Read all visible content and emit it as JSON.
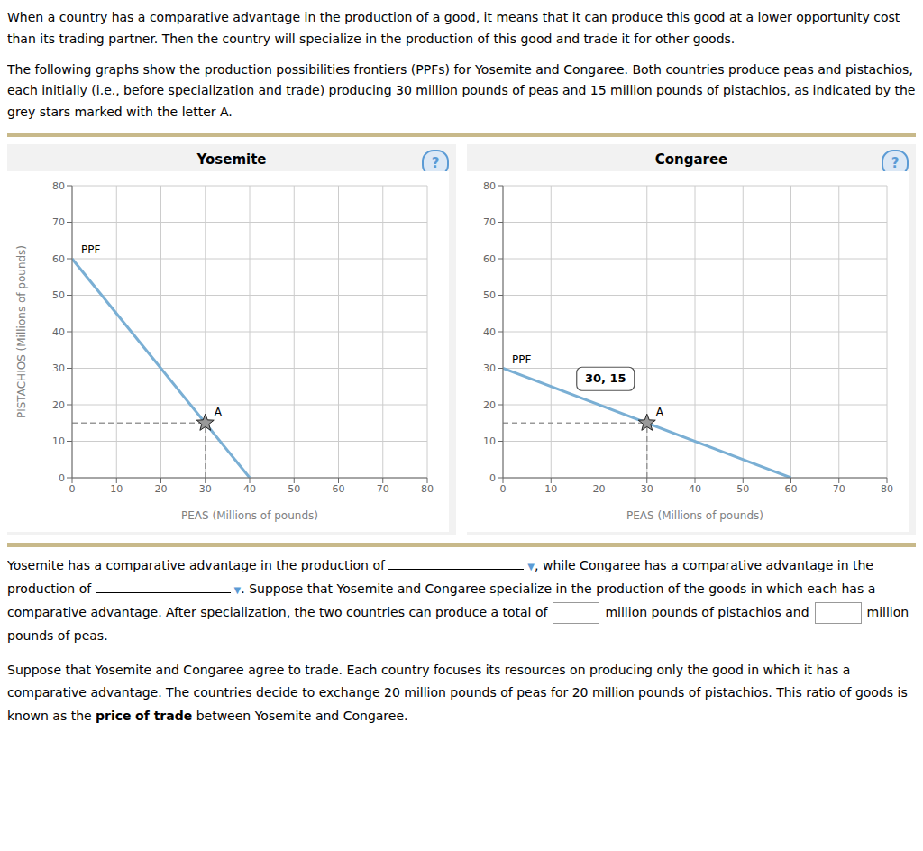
{
  "chart_data": [
    {
      "type": "line",
      "title": "Yosemite",
      "xlabel": "PEAS (Millions of pounds)",
      "ylabel": "PISTACHIOS (Millions of pounds)",
      "xlim": [
        0,
        80
      ],
      "ylim": [
        0,
        80
      ],
      "xticks": [
        0,
        10,
        20,
        30,
        40,
        50,
        60,
        70,
        80
      ],
      "yticks": [
        0,
        10,
        20,
        30,
        40,
        50,
        60,
        70,
        80
      ],
      "grid": true,
      "series": [
        {
          "name": "PPF",
          "type": "line",
          "color": "#7aafd4",
          "x": [
            0,
            40
          ],
          "values": [
            60,
            0
          ]
        },
        {
          "name": "A",
          "type": "scatter",
          "marker": "star",
          "line_style": "dashed",
          "color": "#999999",
          "x": [
            30
          ],
          "values": [
            15
          ]
        }
      ],
      "annotations": [
        {
          "text": "?"
        }
      ]
    },
    {
      "type": "line",
      "title": "Congaree",
      "xlabel": "PEAS (Millions of pounds)",
      "xlim": [
        0,
        80
      ],
      "ylim": [
        0,
        80
      ],
      "xticks": [
        0,
        10,
        20,
        30,
        40,
        50,
        60,
        70,
        80
      ],
      "yticks": [
        0,
        10,
        20,
        30,
        40,
        50,
        60,
        70,
        80
      ],
      "grid": true,
      "series": [
        {
          "name": "PPF",
          "type": "line",
          "color": "#7aafd4",
          "x": [
            0,
            60
          ],
          "values": [
            30,
            0
          ]
        },
        {
          "name": "A",
          "type": "scatter",
          "marker": "star",
          "line_style": "dashed",
          "color": "#999999",
          "x": [
            30
          ],
          "values": [
            15
          ]
        }
      ],
      "annotations": [
        {
          "text": "30, 15",
          "x": 30,
          "y": 15
        },
        {
          "text": "?"
        }
      ]
    }
  ],
  "intro": [
    "When a country has a comparative advantage in the production of a good, it means that it can produce this good at a lower opportunity cost than its\ntrading partner. Then the country will specialize in the production of this good and trade it for other goods.",
    "The following graphs show the production possibilities frontiers (PPFs) for Yosemite and Congaree. Both countries produce peas and pistachios, each\ninitially (i.e., before specialization and trade) producing 30 million pounds of peas and 15 million pounds of pistachios, as indicated by the grey stars\nmarked with the letter A."
  ],
  "question": [
    [
      [
        "Yosemite has a comparative advantage in the production of ",
        {
          "blank": "▼"
        },
        ", while Congaree has a comparative advantage in the"
      ],
      [
        "production of ",
        {
          "blank": "▼"
        },
        ". Suppose that Yosemite and Congaree specialize in the production of the goods in which each has a"
      ],
      [
        "comparative advantage. After specialization, the two countries can produce a total of",
        {
          "box": true
        },
        "million pounds of pistachios and",
        {
          "box": true
        },
        "million pounds"
      ],
      [
        "of peas."
      ]
    ],
    [
      [
        "Suppose that Yosemite and Congaree agree to trade. Each country focuses its resources on producing only the good in which it has a comparative"
      ],
      [
        "advantage. The countries decide to exchange 20 million pounds of peas for 20 million pounds of pistachios. This ratio of goods is known as the ",
        {
          "text": "price",
          "bold": true
        }
      ],
      [
        {
          "text": "of trade",
          "bold": true
        },
        " between Yosemite and Congaree."
      ]
    ]
  ]
}
